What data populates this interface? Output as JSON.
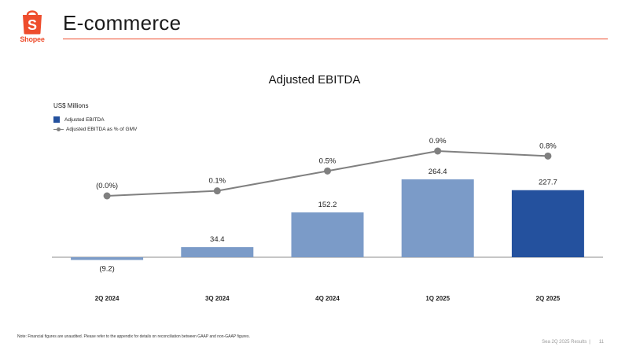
{
  "header": {
    "logo_text": "Shopee",
    "title": "E-commerce"
  },
  "colors": {
    "brand": "#ee4d2d",
    "bar_light": "#7b9bc8",
    "bar_highlight": "#24519e",
    "line": "#808080"
  },
  "chart_data": {
    "type": "bar",
    "title": "Adjusted EBITDA",
    "unit_label": "US$ Millions",
    "categories": [
      "2Q 2024",
      "3Q 2024",
      "4Q 2024",
      "1Q 2025",
      "2Q 2025"
    ],
    "series": [
      {
        "name": "Adjusted EBITDA",
        "type": "bar",
        "values": [
          -9.2,
          34.4,
          152.2,
          264.4,
          227.7
        ],
        "labels": [
          "(9.2)",
          "34.4",
          "152.2",
          "264.4",
          "227.7"
        ],
        "highlight_index": 4
      },
      {
        "name": "Adjusted EBITDA as % of GMV",
        "type": "line",
        "values": [
          0.0,
          0.1,
          0.5,
          0.9,
          0.8
        ],
        "labels": [
          "(0.0%)",
          "0.1%",
          "0.5%",
          "0.9%",
          "0.8%"
        ]
      }
    ],
    "legend_position": "top-left",
    "grid": false
  },
  "footer": {
    "note": "Note: Financial figures are unaudited. Please refer to the appendix for details on reconciliation between GAAP and non-GAAP figures.",
    "deck_label": "Sea 2Q 2025 Results",
    "page_number": "11"
  }
}
